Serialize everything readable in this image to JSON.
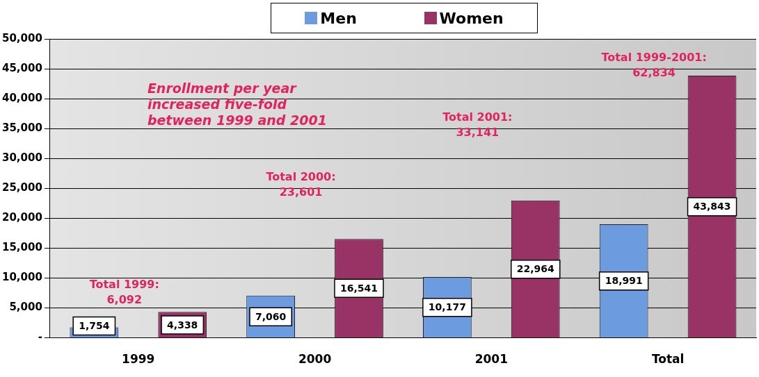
{
  "chart_data": {
    "type": "bar",
    "categories": [
      "1999",
      "2000",
      "2001",
      "Total"
    ],
    "series": [
      {
        "name": "Men",
        "color": "#6c9be0",
        "values": [
          1754,
          7060,
          10177,
          18991
        ],
        "value_labels": [
          "1,754",
          "7,060",
          "10,177",
          "18,991"
        ]
      },
      {
        "name": "Women",
        "color": "#993366",
        "values": [
          4338,
          16541,
          22964,
          43843
        ],
        "value_labels": [
          "4,338",
          "16,541",
          "22,964",
          "43,843"
        ]
      }
    ],
    "ylim": [
      0,
      50000
    ],
    "yticks": [
      {
        "value": 0,
        "label": "-"
      },
      {
        "value": 5000,
        "label": "5,000"
      },
      {
        "value": 10000,
        "label": "10,000"
      },
      {
        "value": 15000,
        "label": "15,000"
      },
      {
        "value": 20000,
        "label": "20,000"
      },
      {
        "value": 25000,
        "label": "25,000"
      },
      {
        "value": 30000,
        "label": "30,000"
      },
      {
        "value": 35000,
        "label": "35,000"
      },
      {
        "value": 40000,
        "label": "40,000"
      },
      {
        "value": 45000,
        "label": "45,000"
      },
      {
        "value": 50000,
        "label": "50,000"
      }
    ],
    "grid": "y",
    "legend": "top",
    "annotations": [
      "Enrollment per year\nincreased five-fold\nbetween 1999 and 2001",
      "Total 1999:\n6,092",
      "Total 2000:\n23,601",
      "Total 2001:\n33,141",
      "Total 1999-2001:\n62,834"
    ]
  }
}
